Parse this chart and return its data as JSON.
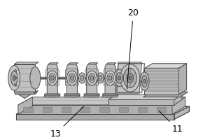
{
  "background_color": "#ffffff",
  "label_20": "20",
  "label_11": "11",
  "label_13": "13",
  "label_fontsize": 9,
  "line_color": "#4a4a4a",
  "annotation_color": "#000000",
  "gray_light": "#d5d5d5",
  "gray_mid": "#b8b8b8",
  "gray_dark": "#888888",
  "gray_darker": "#666666"
}
